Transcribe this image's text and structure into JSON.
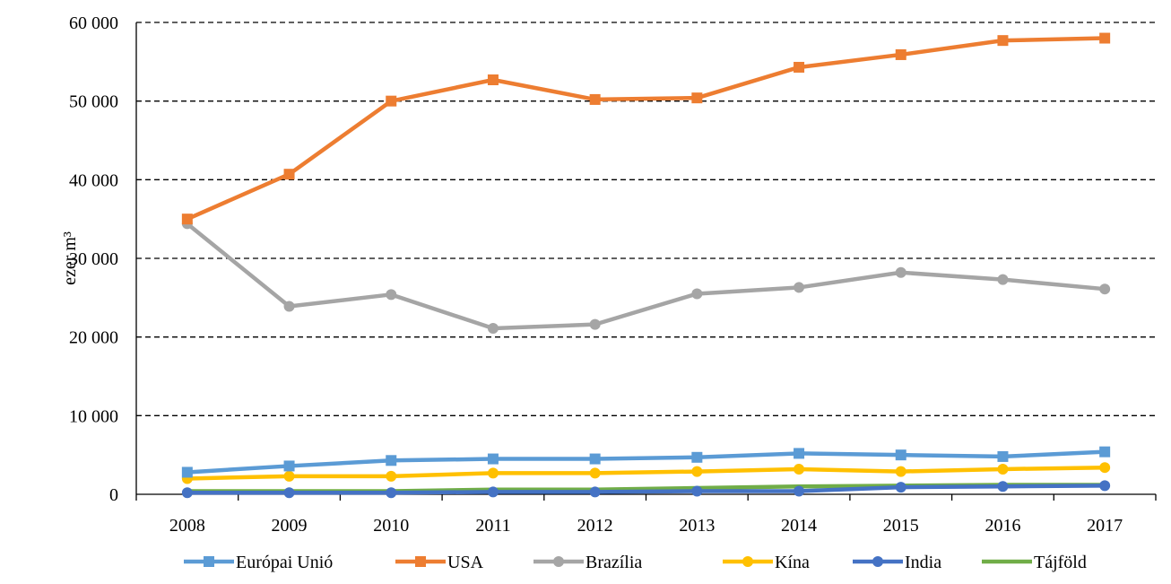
{
  "chart_data": {
    "type": "line",
    "title": "",
    "xlabel": "",
    "ylabel": "ezer m³",
    "ylim": [
      0,
      60000
    ],
    "yticks": [
      0,
      10000,
      20000,
      30000,
      40000,
      50000,
      60000
    ],
    "ytick_labels": [
      "0",
      "10 000",
      "20 000",
      "30 000",
      "40 000",
      "50 000",
      "60 000"
    ],
    "grid": true,
    "legend_position": "bottom",
    "categories": [
      "2008",
      "2009",
      "2010",
      "2011",
      "2012",
      "2013",
      "2014",
      "2015",
      "2016",
      "2017"
    ],
    "series": [
      {
        "name": "Európai Unió",
        "color": "#5B9BD5",
        "marker": "square",
        "values": [
          2800,
          3600,
          4300,
          4500,
          4500,
          4700,
          5200,
          5000,
          4800,
          5400
        ]
      },
      {
        "name": "USA",
        "color": "#ED7D31",
        "marker": "square",
        "values": [
          35000,
          40700,
          50000,
          52700,
          50200,
          50400,
          54300,
          55900,
          57700,
          58000
        ]
      },
      {
        "name": "Brazília",
        "color": "#A5A5A5",
        "marker": "circle",
        "values": [
          34400,
          23900,
          25400,
          21100,
          21600,
          25500,
          26300,
          28200,
          27300,
          26100
        ]
      },
      {
        "name": "Kína",
        "color": "#FFC000",
        "marker": "circle",
        "values": [
          2000,
          2300,
          2300,
          2700,
          2700,
          2900,
          3200,
          2900,
          3200,
          3400
        ]
      },
      {
        "name": "India",
        "color": "#4472C4",
        "marker": "circle",
        "values": [
          200,
          200,
          200,
          300,
          300,
          400,
          400,
          900,
          1000,
          1100
        ]
      },
      {
        "name": "Tájföld",
        "color": "#70AD47",
        "marker": "none",
        "values": [
          400,
          400,
          400,
          600,
          600,
          800,
          1000,
          1100,
          1200,
          1200
        ]
      }
    ]
  }
}
